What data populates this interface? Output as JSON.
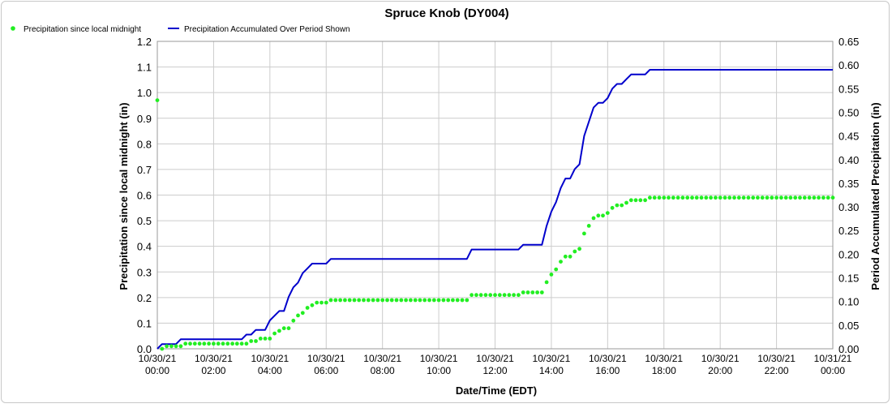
{
  "chart_data": {
    "type": "line",
    "title": "Spruce Knob (DY004)",
    "xlabel": "Date/Time (EDT)",
    "ylabel_left": "Precipitation since local midnight (in)",
    "ylabel_right": "Period Accumulated Precipitation (in)",
    "x_ticks": [
      {
        "date": "10/30/21",
        "time": "00:00"
      },
      {
        "date": "10/30/21",
        "time": "02:00"
      },
      {
        "date": "10/30/21",
        "time": "04:00"
      },
      {
        "date": "10/30/21",
        "time": "06:00"
      },
      {
        "date": "10/30/21",
        "time": "08:00"
      },
      {
        "date": "10/30/21",
        "time": "10:00"
      },
      {
        "date": "10/30/21",
        "time": "12:00"
      },
      {
        "date": "10/30/21",
        "time": "14:00"
      },
      {
        "date": "10/30/21",
        "time": "16:00"
      },
      {
        "date": "10/30/21",
        "time": "18:00"
      },
      {
        "date": "10/30/21",
        "time": "20:00"
      },
      {
        "date": "10/30/21",
        "time": "22:00"
      },
      {
        "date": "10/31/21",
        "time": "00:00"
      }
    ],
    "ylim_left": [
      0,
      1.2
    ],
    "yticks_left": [
      "0.0",
      "0.1",
      "0.2",
      "0.3",
      "0.4",
      "0.5",
      "0.6",
      "0.7",
      "0.8",
      "0.9",
      "1.0",
      "1.1",
      "1.2"
    ],
    "ylim_right": [
      0,
      0.65
    ],
    "yticks_right": [
      "0.00",
      "0.05",
      "0.10",
      "0.15",
      "0.20",
      "0.25",
      "0.30",
      "0.35",
      "0.40",
      "0.45",
      "0.50",
      "0.55",
      "0.60",
      "0.65"
    ],
    "grid": true,
    "legend": "top-left",
    "colors": {
      "midnight": "#22ee22",
      "accum": "#0000cc"
    },
    "series": [
      {
        "name": "Precipitation since local midnight",
        "axis": "left",
        "style": "points",
        "points": [
          [
            "10/30/21 00:00",
            0.97
          ],
          [
            "10/30/21 00:10",
            0.0
          ],
          [
            "10/30/21 00:20",
            0.01
          ],
          [
            "10/30/21 00:50",
            0.01
          ],
          [
            "10/30/21 01:00",
            0.02
          ],
          [
            "10/30/21 03:10",
            0.02
          ],
          [
            "10/30/21 03:20",
            0.03
          ],
          [
            "10/30/21 03:30",
            0.03
          ],
          [
            "10/30/21 03:40",
            0.04
          ],
          [
            "10/30/21 04:00",
            0.04
          ],
          [
            "10/30/21 04:10",
            0.06
          ],
          [
            "10/30/21 04:20",
            0.07
          ],
          [
            "10/30/21 04:30",
            0.08
          ],
          [
            "10/30/21 04:40",
            0.08
          ],
          [
            "10/30/21 04:50",
            0.11
          ],
          [
            "10/30/21 05:00",
            0.13
          ],
          [
            "10/30/21 05:10",
            0.14
          ],
          [
            "10/30/21 05:20",
            0.16
          ],
          [
            "10/30/21 05:30",
            0.17
          ],
          [
            "10/30/21 05:40",
            0.18
          ],
          [
            "10/30/21 06:00",
            0.18
          ],
          [
            "10/30/21 06:10",
            0.19
          ],
          [
            "10/30/21 11:00",
            0.19
          ],
          [
            "10/30/21 11:10",
            0.21
          ],
          [
            "10/30/21 12:50",
            0.21
          ],
          [
            "10/30/21 13:00",
            0.22
          ],
          [
            "10/30/21 13:40",
            0.22
          ],
          [
            "10/30/21 13:50",
            0.26
          ],
          [
            "10/30/21 14:00",
            0.29
          ],
          [
            "10/30/21 14:10",
            0.31
          ],
          [
            "10/30/21 14:20",
            0.34
          ],
          [
            "10/30/21 14:30",
            0.36
          ],
          [
            "10/30/21 14:40",
            0.36
          ],
          [
            "10/30/21 14:50",
            0.38
          ],
          [
            "10/30/21 15:00",
            0.39
          ],
          [
            "10/30/21 15:10",
            0.45
          ],
          [
            "10/30/21 15:20",
            0.48
          ],
          [
            "10/30/21 15:30",
            0.51
          ],
          [
            "10/30/21 15:40",
            0.52
          ],
          [
            "10/30/21 15:50",
            0.52
          ],
          [
            "10/30/21 16:00",
            0.53
          ],
          [
            "10/30/21 16:10",
            0.55
          ],
          [
            "10/30/21 16:20",
            0.56
          ],
          [
            "10/30/21 16:30",
            0.56
          ],
          [
            "10/30/21 16:40",
            0.57
          ],
          [
            "10/30/21 16:50",
            0.58
          ],
          [
            "10/30/21 17:20",
            0.58
          ],
          [
            "10/30/21 17:30",
            0.59
          ],
          [
            "10/31/21 00:00",
            0.59
          ]
        ]
      },
      {
        "name": "Precipitation Accumulated Over Period Shown",
        "axis": "right",
        "style": "line",
        "points": [
          [
            "10/30/21 00:00",
            0.0
          ],
          [
            "10/30/21 00:10",
            0.01
          ],
          [
            "10/30/21 00:40",
            0.01
          ],
          [
            "10/30/21 00:50",
            0.02
          ],
          [
            "10/30/21 03:00",
            0.02
          ],
          [
            "10/30/21 03:10",
            0.03
          ],
          [
            "10/30/21 03:20",
            0.03
          ],
          [
            "10/30/21 03:30",
            0.04
          ],
          [
            "10/30/21 03:50",
            0.04
          ],
          [
            "10/30/21 04:00",
            0.06
          ],
          [
            "10/30/21 04:10",
            0.07
          ],
          [
            "10/30/21 04:20",
            0.08
          ],
          [
            "10/30/21 04:30",
            0.08
          ],
          [
            "10/30/21 04:40",
            0.11
          ],
          [
            "10/30/21 04:50",
            0.13
          ],
          [
            "10/30/21 05:00",
            0.14
          ],
          [
            "10/30/21 05:10",
            0.16
          ],
          [
            "10/30/21 05:20",
            0.17
          ],
          [
            "10/30/21 05:30",
            0.18
          ],
          [
            "10/30/21 06:00",
            0.18
          ],
          [
            "10/30/21 06:10",
            0.19
          ],
          [
            "10/30/21 11:00",
            0.19
          ],
          [
            "10/30/21 11:10",
            0.21
          ],
          [
            "10/30/21 12:50",
            0.21
          ],
          [
            "10/30/21 13:00",
            0.22
          ],
          [
            "10/30/21 13:40",
            0.22
          ],
          [
            "10/30/21 13:50",
            0.26
          ],
          [
            "10/30/21 14:00",
            0.29
          ],
          [
            "10/30/21 14:10",
            0.31
          ],
          [
            "10/30/21 14:20",
            0.34
          ],
          [
            "10/30/21 14:30",
            0.36
          ],
          [
            "10/30/21 14:40",
            0.36
          ],
          [
            "10/30/21 14:50",
            0.38
          ],
          [
            "10/30/21 15:00",
            0.39
          ],
          [
            "10/30/21 15:10",
            0.45
          ],
          [
            "10/30/21 15:20",
            0.48
          ],
          [
            "10/30/21 15:30",
            0.51
          ],
          [
            "10/30/21 15:40",
            0.52
          ],
          [
            "10/30/21 15:50",
            0.52
          ],
          [
            "10/30/21 16:00",
            0.53
          ],
          [
            "10/30/21 16:10",
            0.55
          ],
          [
            "10/30/21 16:20",
            0.56
          ],
          [
            "10/30/21 16:30",
            0.56
          ],
          [
            "10/30/21 16:40",
            0.57
          ],
          [
            "10/30/21 16:50",
            0.58
          ],
          [
            "10/30/21 17:20",
            0.58
          ],
          [
            "10/30/21 17:30",
            0.59
          ],
          [
            "10/31/21 00:00",
            0.59
          ]
        ]
      }
    ]
  }
}
